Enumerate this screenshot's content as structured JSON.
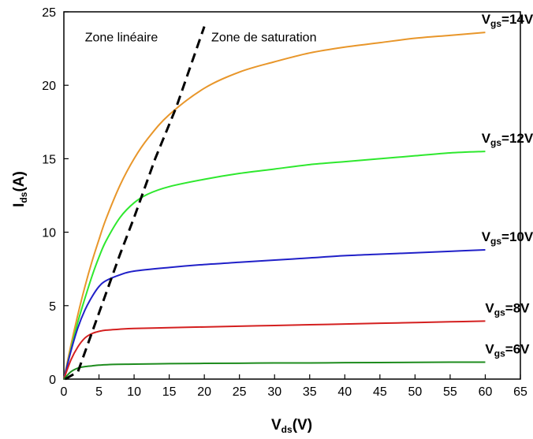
{
  "chart_data": {
    "type": "line",
    "xlabel": {
      "main": "V",
      "sub": "ds",
      "tail": "(V)"
    },
    "ylabel": {
      "main": "I",
      "sub": "ds",
      "tail": "(A)"
    },
    "xlim": [
      0,
      65
    ],
    "ylim": [
      0,
      25
    ],
    "xticks": [
      0,
      5,
      10,
      15,
      20,
      25,
      30,
      35,
      40,
      45,
      50,
      55,
      60,
      65
    ],
    "yticks": [
      0,
      5,
      10,
      15,
      20,
      25
    ],
    "grid": false,
    "annotations": [
      {
        "text": "Zone linéaire",
        "x": 3,
        "y": 23
      },
      {
        "text": "Zone de saturation",
        "x": 21,
        "y": 23
      }
    ],
    "boundary": {
      "style": "dashed",
      "color": "#000000",
      "points": [
        [
          0.2,
          0
        ],
        [
          2,
          0.5
        ],
        [
          5,
          4.5
        ],
        [
          8,
          8.5
        ],
        [
          10,
          11
        ],
        [
          13,
          15
        ],
        [
          16,
          18.5
        ],
        [
          20,
          24
        ]
      ]
    },
    "series": [
      {
        "label": {
          "main": "V",
          "sub": "gs",
          "tail": "=14V"
        },
        "color": "#e8962a",
        "points": [
          [
            0,
            0
          ],
          [
            1,
            2.3
          ],
          [
            2,
            4.4
          ],
          [
            3,
            6.3
          ],
          [
            4,
            8.0
          ],
          [
            5,
            9.5
          ],
          [
            6,
            10.9
          ],
          [
            8,
            13.2
          ],
          [
            10,
            15.0
          ],
          [
            12,
            16.4
          ],
          [
            15,
            18.0
          ],
          [
            20,
            19.8
          ],
          [
            25,
            20.9
          ],
          [
            30,
            21.6
          ],
          [
            35,
            22.2
          ],
          [
            40,
            22.6
          ],
          [
            45,
            22.9
          ],
          [
            50,
            23.2
          ],
          [
            55,
            23.4
          ],
          [
            60,
            23.6
          ]
        ]
      },
      {
        "label": {
          "main": "V",
          "sub": "gs",
          "tail": "=12V"
        },
        "color": "#2ee82e",
        "points": [
          [
            0,
            0
          ],
          [
            1,
            2.0
          ],
          [
            2,
            3.9
          ],
          [
            3,
            5.5
          ],
          [
            4,
            7.0
          ],
          [
            5,
            8.3
          ],
          [
            6,
            9.4
          ],
          [
            8,
            11.0
          ],
          [
            10,
            12.0
          ],
          [
            12,
            12.6
          ],
          [
            15,
            13.1
          ],
          [
            20,
            13.6
          ],
          [
            25,
            14.0
          ],
          [
            30,
            14.3
          ],
          [
            35,
            14.6
          ],
          [
            40,
            14.8
          ],
          [
            45,
            15.0
          ],
          [
            50,
            15.2
          ],
          [
            55,
            15.4
          ],
          [
            60,
            15.5
          ]
        ]
      },
      {
        "label": {
          "main": "V",
          "sub": "gs",
          "tail": "=10V"
        },
        "color": "#2020c8",
        "points": [
          [
            0,
            0
          ],
          [
            1,
            1.9
          ],
          [
            2,
            3.5
          ],
          [
            3,
            4.7
          ],
          [
            4,
            5.6
          ],
          [
            5,
            6.3
          ],
          [
            6,
            6.7
          ],
          [
            8,
            7.1
          ],
          [
            10,
            7.35
          ],
          [
            15,
            7.6
          ],
          [
            20,
            7.8
          ],
          [
            25,
            7.95
          ],
          [
            30,
            8.1
          ],
          [
            35,
            8.25
          ],
          [
            40,
            8.4
          ],
          [
            45,
            8.5
          ],
          [
            50,
            8.6
          ],
          [
            55,
            8.7
          ],
          [
            60,
            8.8
          ]
        ]
      },
      {
        "label": {
          "main": "V",
          "sub": "gs",
          "tail": "=8V"
        },
        "color": "#d42020",
        "points": [
          [
            0,
            0
          ],
          [
            1,
            1.3
          ],
          [
            2,
            2.2
          ],
          [
            3,
            2.8
          ],
          [
            4,
            3.1
          ],
          [
            5,
            3.25
          ],
          [
            6,
            3.33
          ],
          [
            8,
            3.4
          ],
          [
            10,
            3.45
          ],
          [
            15,
            3.5
          ],
          [
            20,
            3.55
          ],
          [
            25,
            3.6
          ],
          [
            30,
            3.65
          ],
          [
            35,
            3.7
          ],
          [
            40,
            3.75
          ],
          [
            45,
            3.8
          ],
          [
            50,
            3.85
          ],
          [
            55,
            3.9
          ],
          [
            60,
            3.95
          ]
        ]
      },
      {
        "label": {
          "main": "V",
          "sub": "gs",
          "tail": "=6V"
        },
        "color": "#1e8c1e",
        "points": [
          [
            0,
            0
          ],
          [
            1,
            0.5
          ],
          [
            2,
            0.75
          ],
          [
            3,
            0.85
          ],
          [
            4,
            0.9
          ],
          [
            5,
            0.95
          ],
          [
            7,
            1.0
          ],
          [
            10,
            1.02
          ],
          [
            15,
            1.05
          ],
          [
            20,
            1.07
          ],
          [
            25,
            1.08
          ],
          [
            30,
            1.1
          ],
          [
            35,
            1.1
          ],
          [
            40,
            1.12
          ],
          [
            45,
            1.13
          ],
          [
            50,
            1.14
          ],
          [
            55,
            1.15
          ],
          [
            60,
            1.15
          ]
        ]
      }
    ]
  }
}
